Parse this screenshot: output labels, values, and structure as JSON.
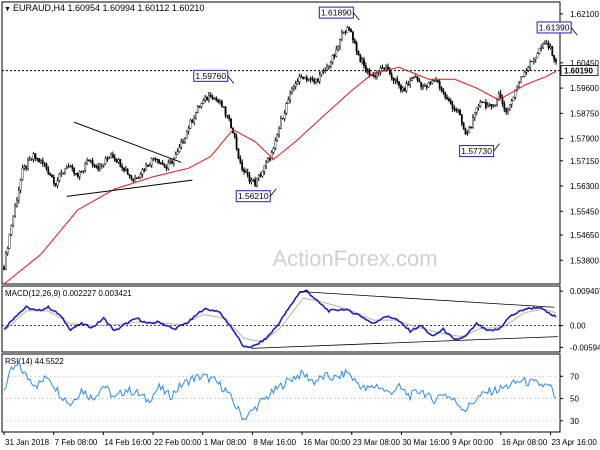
{
  "header": {
    "symbol": "EURAUD,H4",
    "ohlc": "1.60954 1.60994 1.60112 1.60210"
  },
  "watermark": "ActionForex.com",
  "colors": {
    "candle": "#000000",
    "sma": "#e8141a",
    "ema": "#1e1ebe",
    "rsi": "#2a8de8",
    "signal": "#b4b4b4",
    "grid": "#c8c8c8",
    "label_border": "#1e1ebe"
  },
  "chart_data": [
    {
      "type": "candlestick",
      "ylim": [
        1.53,
        1.625
      ],
      "yticks": [
        "1.62100",
        "1.60450",
        "1.59600",
        "1.58750",
        "1.57900",
        "1.57150",
        "1.56300",
        "1.55450",
        "1.54650",
        "1.53800"
      ],
      "current_price": "1.60190",
      "annotations": [
        {
          "label": "1.61890",
          "value": 1.6189
        },
        {
          "label": "1.61390",
          "value": 1.6139
        },
        {
          "label": "1.59760",
          "value": 1.5976
        },
        {
          "label": "1.56210",
          "value": 1.5621
        },
        {
          "label": "1.57730",
          "value": 1.5773
        }
      ],
      "key_closes": [
        [
          0,
          1.536
        ],
        [
          4,
          1.55
        ],
        [
          10,
          1.568
        ],
        [
          16,
          1.573
        ],
        [
          22,
          1.57
        ],
        [
          28,
          1.564
        ],
        [
          34,
          1.57
        ],
        [
          40,
          1.566
        ],
        [
          46,
          1.572
        ],
        [
          52,
          1.569
        ],
        [
          58,
          1.574
        ],
        [
          64,
          1.57
        ],
        [
          70,
          1.565
        ],
        [
          76,
          1.569
        ],
        [
          82,
          1.573
        ],
        [
          88,
          1.569
        ],
        [
          94,
          1.574
        ],
        [
          100,
          1.583
        ],
        [
          106,
          1.59
        ],
        [
          112,
          1.594
        ],
        [
          118,
          1.59
        ],
        [
          124,
          1.582
        ],
        [
          128,
          1.57
        ],
        [
          132,
          1.566
        ],
        [
          136,
          1.564
        ],
        [
          140,
          1.568
        ],
        [
          146,
          1.575
        ],
        [
          150,
          1.585
        ],
        [
          154,
          1.592
        ],
        [
          158,
          1.598
        ],
        [
          162,
          1.6
        ],
        [
          168,
          1.598
        ],
        [
          174,
          1.602
        ],
        [
          180,
          1.608
        ],
        [
          184,
          1.616
        ],
        [
          188,
          1.615
        ],
        [
          192,
          1.607
        ],
        [
          196,
          1.602
        ],
        [
          200,
          1.6
        ],
        [
          206,
          1.603
        ],
        [
          210,
          1.6
        ],
        [
          216,
          1.595
        ],
        [
          222,
          1.6
        ],
        [
          228,
          1.596
        ],
        [
          234,
          1.599
        ],
        [
          240,
          1.592
        ],
        [
          246,
          1.588
        ],
        [
          250,
          1.58
        ],
        [
          254,
          1.585
        ],
        [
          258,
          1.592
        ],
        [
          264,
          1.589
        ],
        [
          268,
          1.594
        ],
        [
          272,
          1.588
        ],
        [
          276,
          1.593
        ],
        [
          280,
          1.6
        ],
        [
          286,
          1.605
        ],
        [
          290,
          1.609
        ],
        [
          294,
          1.611
        ],
        [
          297,
          1.608
        ],
        [
          300,
          1.6021
        ]
      ],
      "sma_points": [
        [
          0,
          1.53
        ],
        [
          20,
          1.54
        ],
        [
          40,
          1.555
        ],
        [
          60,
          1.562
        ],
        [
          80,
          1.566
        ],
        [
          100,
          1.569
        ],
        [
          112,
          1.573
        ],
        [
          124,
          1.582
        ],
        [
          136,
          1.578
        ],
        [
          146,
          1.572
        ],
        [
          158,
          1.578
        ],
        [
          172,
          1.586
        ],
        [
          188,
          1.595
        ],
        [
          200,
          1.601
        ],
        [
          214,
          1.603
        ],
        [
          230,
          1.599
        ],
        [
          244,
          1.599
        ],
        [
          256,
          1.596
        ],
        [
          268,
          1.592
        ],
        [
          282,
          1.597
        ],
        [
          294,
          1.6
        ],
        [
          300,
          1.602
        ]
      ],
      "triangle_upper": [
        [
          38,
          1.5845
        ],
        [
          96,
          1.571
        ]
      ],
      "triangle_lower": [
        [
          34,
          1.5595
        ],
        [
          102,
          1.565
        ]
      ]
    },
    {
      "type": "line",
      "title": "MACD(12,26,9) 0.002227 0.003421",
      "ylim": [
        -0.0072,
        0.0108
      ],
      "yticks": [
        "0.009407",
        "0.00",
        "-0.00594"
      ],
      "series": [
        {
          "name": "MACD",
          "values_at": [
            [
              0,
              -0.001
            ],
            [
              6,
              0.0025
            ],
            [
              12,
              0.005
            ],
            [
              18,
              0.004
            ],
            [
              24,
              0.005
            ],
            [
              30,
              0.003
            ],
            [
              36,
              -0.001
            ],
            [
              42,
              0.0005
            ],
            [
              48,
              -0.0005
            ],
            [
              54,
              0.002
            ],
            [
              60,
              -0.0015
            ],
            [
              66,
              0.0005
            ],
            [
              72,
              0.002
            ],
            [
              78,
              0.0005
            ],
            [
              84,
              0.001
            ],
            [
              92,
              -0.001
            ],
            [
              100,
              0.001
            ],
            [
              108,
              0.0045
            ],
            [
              116,
              0.004
            ],
            [
              124,
              -0.001
            ],
            [
              130,
              -0.006
            ],
            [
              136,
              -0.0055
            ],
            [
              142,
              -0.0035
            ],
            [
              148,
              0.0
            ],
            [
              154,
              0.0045
            ],
            [
              160,
              0.009
            ],
            [
              164,
              0.0095
            ],
            [
              170,
              0.0065
            ],
            [
              176,
              0.004
            ],
            [
              184,
              0.0045
            ],
            [
              192,
              0.003
            ],
            [
              200,
              0.0005
            ],
            [
              206,
              0.0025
            ],
            [
              212,
              0.002
            ],
            [
              220,
              -0.0015
            ],
            [
              226,
              0.0
            ],
            [
              232,
              -0.003
            ],
            [
              238,
              -0.001
            ],
            [
              244,
              -0.004
            ],
            [
              250,
              -0.003
            ],
            [
              256,
              0.0005
            ],
            [
              262,
              -0.0015
            ],
            [
              268,
              -0.001
            ],
            [
              274,
              0.0025
            ],
            [
              282,
              0.0045
            ],
            [
              290,
              0.005
            ],
            [
              296,
              0.003
            ],
            [
              300,
              0.0022
            ]
          ]
        },
        {
          "name": "Signal",
          "values_at": [
            [
              0,
              -0.0015
            ],
            [
              12,
              0.004
            ],
            [
              24,
              0.004
            ],
            [
              36,
              0.0005
            ],
            [
              48,
              0.0
            ],
            [
              60,
              0.0002
            ],
            [
              72,
              0.001
            ],
            [
              84,
              0.0008
            ],
            [
              96,
              0.0002
            ],
            [
              108,
              0.003
            ],
            [
              120,
              0.002
            ],
            [
              130,
              -0.0035
            ],
            [
              140,
              -0.0045
            ],
            [
              150,
              -0.0005
            ],
            [
              162,
              0.0075
            ],
            [
              172,
              0.0065
            ],
            [
              186,
              0.0045
            ],
            [
              200,
              0.0015
            ],
            [
              212,
              0.0015
            ],
            [
              224,
              -0.0005
            ],
            [
              236,
              -0.002
            ],
            [
              248,
              -0.003
            ],
            [
              258,
              -0.0008
            ],
            [
              270,
              -0.0005
            ],
            [
              282,
              0.0035
            ],
            [
              292,
              0.0045
            ],
            [
              300,
              0.0034
            ]
          ]
        }
      ],
      "trend_upper": [
        [
          160,
          0.0093
        ],
        [
          298,
          0.005
        ]
      ],
      "trend_lower": [
        [
          134,
          -0.0062
        ],
        [
          300,
          -0.003
        ]
      ]
    },
    {
      "type": "line",
      "title": "RSI(14) 44.5522",
      "ylim": [
        20,
        90
      ],
      "yticks": [
        "70",
        "50",
        "30"
      ],
      "series": [
        {
          "name": "RSI",
          "values_at": [
            [
              0,
              58
            ],
            [
              4,
              75
            ],
            [
              8,
              80
            ],
            [
              12,
              70
            ],
            [
              18,
              62
            ],
            [
              24,
              70
            ],
            [
              30,
              55
            ],
            [
              36,
              45
            ],
            [
              42,
              58
            ],
            [
              48,
              50
            ],
            [
              54,
              62
            ],
            [
              60,
              50
            ],
            [
              66,
              58
            ],
            [
              72,
              55
            ],
            [
              78,
              48
            ],
            [
              84,
              60
            ],
            [
              90,
              52
            ],
            [
              96,
              62
            ],
            [
              102,
              68
            ],
            [
              108,
              70
            ],
            [
              114,
              66
            ],
            [
              120,
              58
            ],
            [
              126,
              42
            ],
            [
              130,
              32
            ],
            [
              134,
              38
            ],
            [
              140,
              48
            ],
            [
              146,
              56
            ],
            [
              152,
              64
            ],
            [
              158,
              70
            ],
            [
              162,
              72
            ],
            [
              168,
              65
            ],
            [
              174,
              70
            ],
            [
              180,
              68
            ],
            [
              186,
              74
            ],
            [
              190,
              66
            ],
            [
              196,
              58
            ],
            [
              202,
              62
            ],
            [
              208,
              55
            ],
            [
              214,
              60
            ],
            [
              220,
              52
            ],
            [
              226,
              58
            ],
            [
              232,
              48
            ],
            [
              238,
              55
            ],
            [
              244,
              48
            ],
            [
              250,
              40
            ],
            [
              256,
              50
            ],
            [
              262,
              56
            ],
            [
              268,
              58
            ],
            [
              274,
              62
            ],
            [
              280,
              66
            ],
            [
              286,
              64
            ],
            [
              292,
              62
            ],
            [
              296,
              60
            ],
            [
              300,
              44.55
            ]
          ]
        }
      ]
    }
  ],
  "x_axis": {
    "labels": [
      {
        "label": "31 Jan 2018",
        "bar": 0
      },
      {
        "label": "7 Feb 08:00",
        "bar": 36
      },
      {
        "label": "14 Feb 16:00",
        "bar": 72
      },
      {
        "label": "22 Feb 00:00",
        "bar": 108
      },
      {
        "label": "1 Mar 08:00",
        "bar": 144
      },
      {
        "label": "8 Mar 16:00",
        "bar": 180
      },
      {
        "label": "16 Mar 00:00",
        "bar": 216
      },
      {
        "label": "23 Mar 08:00",
        "bar": 252
      },
      {
        "label": "30 Mar 16:00",
        "bar": 288
      },
      {
        "label": "9 Apr 00:00",
        "bar": 324
      },
      {
        "label": "16 Apr 08:00",
        "bar": 360
      },
      {
        "label": "23 Apr 16:00",
        "bar": 396
      }
    ],
    "bar_count": 300
  }
}
